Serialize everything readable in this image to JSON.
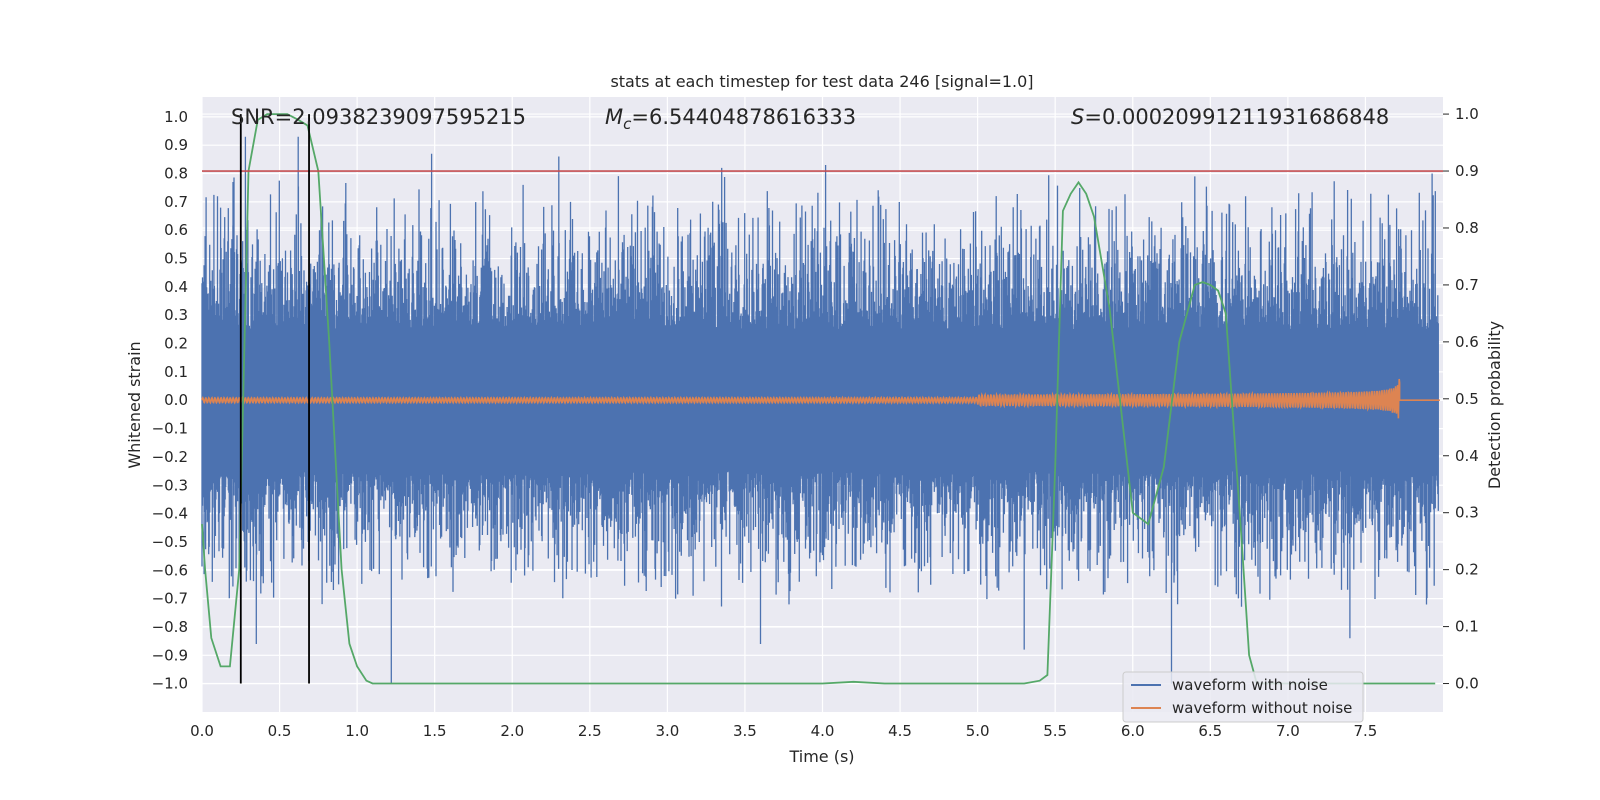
{
  "chart_data": {
    "type": "line",
    "title": "stats at each timestep for test data 246 [signal=1.0]",
    "xlabel": "Time (s)",
    "ylabel": "Whitened strain",
    "y2label": "Detection probability",
    "xlim": [
      0.0,
      8.0
    ],
    "ylim": [
      -1.1,
      1.07
    ],
    "y2lim": [
      -0.05,
      1.03
    ],
    "x_ticks": [
      "0.0",
      "0.5",
      "1.0",
      "1.5",
      "2.0",
      "2.5",
      "3.0",
      "3.5",
      "4.0",
      "4.5",
      "5.0",
      "5.5",
      "6.0",
      "6.5",
      "7.0",
      "7.5"
    ],
    "y_ticks": [
      "1.0",
      "0.9",
      "0.8",
      "0.7",
      "0.6",
      "0.5",
      "0.4",
      "0.3",
      "0.2",
      "0.1",
      "0.0",
      "−0.1",
      "−0.2",
      "−0.3",
      "−0.4",
      "−0.5",
      "−0.6",
      "−0.7",
      "−0.8",
      "−0.9",
      "−1.0"
    ],
    "y2_ticks": [
      "1.0",
      "0.9",
      "0.8",
      "0.7",
      "0.6",
      "0.5",
      "0.4",
      "0.3",
      "0.2",
      "0.1",
      "0.0"
    ],
    "grid": true,
    "legend_position": "lower-right",
    "annotations": {
      "snr": "SNR=2.0938239097595215",
      "mc_symbol": "M",
      "mc_sub": "c",
      "mc_value": "=6.54404878616333",
      "s_symbol": "S",
      "s_value": "=0.00020991211931686848"
    },
    "threshold_prob": 0.9,
    "vertical_lines_x": [
      0.25,
      0.69
    ],
    "series": [
      {
        "name": "waveform with noise",
        "color": "#4c72b0",
        "description_kind": "noise-dominated strain",
        "envelope_typical": 0.45,
        "spikes": [
          {
            "x": 0.1,
            "y": 0.72
          },
          {
            "x": 0.2,
            "y": 0.77
          },
          {
            "x": 0.28,
            "y": 0.93
          },
          {
            "x": 0.62,
            "y": 0.93
          },
          {
            "x": 1.48,
            "y": 0.87
          },
          {
            "x": 2.3,
            "y": 0.86
          },
          {
            "x": 3.35,
            "y": 0.82
          },
          {
            "x": 4.02,
            "y": 0.83
          },
          {
            "x": 6.4,
            "y": 0.79
          },
          {
            "x": 7.93,
            "y": 0.8
          },
          {
            "x": 0.35,
            "y": -0.86
          },
          {
            "x": 1.22,
            "y": -1.0
          },
          {
            "x": 3.6,
            "y": -0.86
          },
          {
            "x": 5.3,
            "y": -0.88
          },
          {
            "x": 6.25,
            "y": -1.0
          },
          {
            "x": 7.4,
            "y": -0.84
          }
        ]
      },
      {
        "name": "waveform without noise",
        "color": "#dd8452",
        "description_kind": "chirp",
        "end_x": 7.72,
        "peak_amplitude": 0.07
      },
      {
        "name": "detection probability",
        "color": "#55a868",
        "axis": "right",
        "x": [
          0.0,
          0.02,
          0.06,
          0.12,
          0.18,
          0.24,
          0.3,
          0.36,
          0.42,
          0.5,
          0.55,
          0.62,
          0.68,
          0.75,
          0.82,
          0.9,
          0.95,
          1.0,
          1.06,
          1.1,
          1.2,
          2.0,
          3.0,
          3.5,
          3.8,
          4.0,
          4.2,
          4.4,
          4.6,
          5.0,
          5.3,
          5.4,
          5.45,
          5.5,
          5.55,
          5.6,
          5.65,
          5.7,
          5.75,
          5.85,
          6.0,
          6.1,
          6.2,
          6.3,
          6.4,
          6.45,
          6.5,
          6.55,
          6.6,
          6.7,
          6.75,
          6.8,
          7.0,
          7.5,
          7.95
        ],
        "y": [
          0.28,
          0.2,
          0.08,
          0.03,
          0.03,
          0.2,
          0.9,
          0.99,
          1.0,
          1.0,
          1.0,
          0.99,
          0.98,
          0.9,
          0.6,
          0.2,
          0.07,
          0.03,
          0.005,
          0.0,
          0.0,
          0.0,
          0.0,
          0.0,
          0.0,
          0.0,
          0.003,
          0.0,
          0.0,
          0.0,
          0.0,
          0.005,
          0.015,
          0.38,
          0.83,
          0.86,
          0.88,
          0.86,
          0.82,
          0.66,
          0.3,
          0.28,
          0.38,
          0.6,
          0.7,
          0.705,
          0.7,
          0.69,
          0.65,
          0.26,
          0.05,
          0.0,
          0.0,
          0.0,
          0.0
        ]
      }
    ]
  }
}
